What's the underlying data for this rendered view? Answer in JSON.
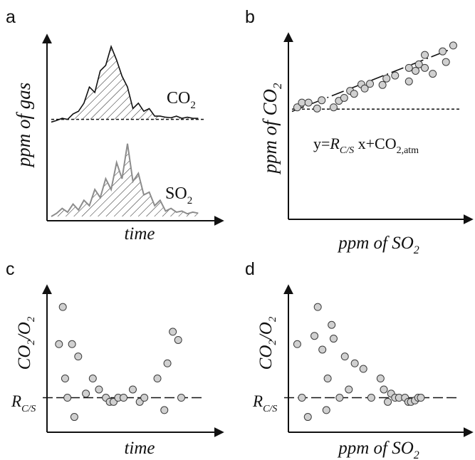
{
  "colors": {
    "ink": "#111111",
    "so2_line": "#8c8c8c",
    "marker_fill": "#d0d0d0",
    "marker_edge": "#3a3a3a"
  },
  "chart_data": [
    {
      "id": "a",
      "type": "area",
      "panel_label": "a",
      "xlabel": "time",
      "ylabel": "ppm of gas",
      "xlim": [
        0,
        28
      ],
      "ylim": [
        0,
        33
      ],
      "baseline_co2": 18,
      "series": [
        {
          "name": "CO₂",
          "label_main": "CO",
          "label_sub": "2",
          "x": [
            0,
            1,
            2,
            3,
            4,
            5,
            6,
            7,
            8,
            9,
            10,
            11,
            12,
            13,
            14,
            15,
            16,
            17,
            18,
            19,
            20,
            21,
            22,
            23,
            24,
            25,
            26,
            27
          ],
          "values": [
            17.5,
            17.8,
            18.2,
            18.0,
            19.0,
            19.5,
            21.0,
            24.0,
            23.0,
            27.0,
            28.0,
            31.5,
            29.0,
            26.0,
            24.0,
            20.0,
            21.0,
            19.5,
            20.0,
            18.6,
            18.6,
            18.4,
            18.3,
            18.6,
            18.2,
            18.4,
            18.2,
            18.2
          ]
        },
        {
          "name": "SO₂",
          "label_main": "SO",
          "label_sub": "2",
          "x": [
            0,
            1,
            2,
            3,
            4,
            5,
            6,
            7,
            8,
            9,
            10,
            11,
            12,
            13,
            14,
            15,
            16,
            17,
            18,
            19,
            20,
            21,
            22,
            23,
            24,
            25,
            26,
            27
          ],
          "values": [
            0.0,
            0.6,
            1.5,
            0.8,
            2.3,
            1.2,
            3.0,
            2.0,
            5.0,
            3.5,
            7.0,
            5.0,
            10.0,
            7.0,
            13.5,
            6.5,
            8.0,
            4.0,
            4.5,
            2.0,
            3.0,
            1.0,
            1.5,
            0.8,
            1.0,
            0.5,
            0.8,
            0.6
          ]
        }
      ]
    },
    {
      "id": "b",
      "type": "scatter",
      "panel_label": "b",
      "xlabel": "ppm of SO₂",
      "xlabel_main": "ppm of SO",
      "xlabel_sub": "2",
      "ylabel": "ppm of CO₂",
      "ylabel_main": "ppm of CO",
      "ylabel_sub": "2",
      "xlim": [
        0,
        25
      ],
      "ylim": [
        0,
        30
      ],
      "baseline": 18,
      "fit": {
        "slope": 0.44,
        "intercept": 17.6,
        "x_range": [
          0,
          24
        ]
      },
      "equation": {
        "prefix": "y=",
        "r_main": "R",
        "r_sub": "C/S",
        "mid": " x+CO",
        "tail_sub": "2,atm"
      },
      "points": [
        [
          0.8,
          18.3
        ],
        [
          1.5,
          19.1
        ],
        [
          2.5,
          19.1
        ],
        [
          3.8,
          18.1
        ],
        [
          4.5,
          19.5
        ],
        [
          6.3,
          18.3
        ],
        [
          7.1,
          19.4
        ],
        [
          7.9,
          19.9
        ],
        [
          8.8,
          21.1
        ],
        [
          9.4,
          20.6
        ],
        [
          10.5,
          22.2
        ],
        [
          11.0,
          21.5
        ],
        [
          11.8,
          22.3
        ],
        [
          13.7,
          22.1
        ],
        [
          14.3,
          23.2
        ],
        [
          15.6,
          23.7
        ],
        [
          17.7,
          22.7
        ],
        [
          17.7,
          25.0
        ],
        [
          18.7,
          24.5
        ],
        [
          19.2,
          25.6
        ],
        [
          20.1,
          25.0
        ],
        [
          20.1,
          27.2
        ],
        [
          21.3,
          24.0
        ],
        [
          22.8,
          27.8
        ],
        [
          23.3,
          26.0
        ],
        [
          24.4,
          28.8
        ]
      ]
    },
    {
      "id": "c",
      "type": "scatter",
      "panel_label": "c",
      "xlabel": "time",
      "ylabel": "CO₂/O₂",
      "ylabel_parts": [
        "CO",
        "2",
        "/O",
        "2"
      ],
      "r_label_main": "R",
      "r_label_sub": "C/S",
      "xlim": [
        0,
        20
      ],
      "ylim": [
        0,
        10
      ],
      "r_value": 2.2,
      "points": [
        [
          1.0,
          6.1
        ],
        [
          1.5,
          8.8
        ],
        [
          1.8,
          3.6
        ],
        [
          2.1,
          2.2
        ],
        [
          2.7,
          6.1
        ],
        [
          3.0,
          0.8
        ],
        [
          3.5,
          5.2
        ],
        [
          4.5,
          2.5
        ],
        [
          5.4,
          3.6
        ],
        [
          6.2,
          2.8
        ],
        [
          7.1,
          2.2
        ],
        [
          7.6,
          1.9
        ],
        [
          8.1,
          1.9
        ],
        [
          8.7,
          2.2
        ],
        [
          9.4,
          2.2
        ],
        [
          10.6,
          2.8
        ],
        [
          11.5,
          1.9
        ],
        [
          12.1,
          2.2
        ],
        [
          13.8,
          3.6
        ],
        [
          14.7,
          1.3
        ],
        [
          15.1,
          4.7
        ],
        [
          15.8,
          7.0
        ],
        [
          16.5,
          6.4
        ],
        [
          16.9,
          2.2
        ]
      ]
    },
    {
      "id": "d",
      "type": "scatter",
      "panel_label": "d",
      "xlabel": "ppm of SO₂",
      "xlabel_main": "ppm of SO",
      "xlabel_sub": "2",
      "ylabel": "CO₂/O₂",
      "ylabel_parts": [
        "CO",
        "2",
        "/O",
        "2"
      ],
      "r_label_main": "R",
      "r_label_sub": "C/S",
      "xlim": [
        0,
        25
      ],
      "ylim": [
        0,
        10
      ],
      "r_value": 2.2,
      "points": [
        [
          0.8,
          6.1
        ],
        [
          1.5,
          2.2
        ],
        [
          2.4,
          0.8
        ],
        [
          3.4,
          6.7
        ],
        [
          3.9,
          8.8
        ],
        [
          4.6,
          5.7
        ],
        [
          5.2,
          1.3
        ],
        [
          5.4,
          3.6
        ],
        [
          6.0,
          7.5
        ],
        [
          6.3,
          6.5
        ],
        [
          7.2,
          2.2
        ],
        [
          8.0,
          5.2
        ],
        [
          8.6,
          2.8
        ],
        [
          9.5,
          4.7
        ],
        [
          10.8,
          4.3
        ],
        [
          12.0,
          2.2
        ],
        [
          13.4,
          3.6
        ],
        [
          13.9,
          2.8
        ],
        [
          14.5,
          1.9
        ],
        [
          15.0,
          2.5
        ],
        [
          15.6,
          2.2
        ],
        [
          16.2,
          2.2
        ],
        [
          17.1,
          2.2
        ],
        [
          17.6,
          1.9
        ],
        [
          18.0,
          1.9
        ],
        [
          18.6,
          2.0
        ],
        [
          19.1,
          2.2
        ],
        [
          19.5,
          2.2
        ]
      ]
    }
  ]
}
